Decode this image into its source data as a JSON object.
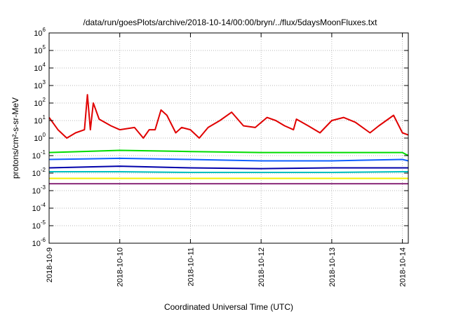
{
  "chart_data": {
    "type": "line",
    "title": "/data/run/goesPlots/archive/2018-10-14/00:00/bryn/../flux/5daysMoonFluxes.txt",
    "xlabel": "Coordinated Universal Time (UTC)",
    "ylabel": "protons/cm²-s-sr-MeV",
    "yscale": "log",
    "ylim": [
      1e-06,
      1000000.0
    ],
    "xlim": [
      "2018-10-09T00:00",
      "2018-10-14T02:00"
    ],
    "grid": true,
    "legend": "none",
    "x_ticks": [
      "2018-10-9",
      "2018-10-10",
      "2018-10-11",
      "2018-10-12",
      "2018-10-13",
      "2018-10-14"
    ],
    "y_ticks": [
      {
        "base": "10",
        "exp": "-6"
      },
      {
        "base": "10",
        "exp": "-5"
      },
      {
        "base": "10",
        "exp": "-4"
      },
      {
        "base": "10",
        "exp": "-3"
      },
      {
        "base": "10",
        "exp": "-2"
      },
      {
        "base": "10",
        "exp": "-1"
      },
      {
        "base": "10",
        "exp": "0"
      },
      {
        "base": "10",
        "exp": "1"
      },
      {
        "base": "10",
        "exp": "2"
      },
      {
        "base": "10",
        "exp": "3"
      },
      {
        "base": "10",
        "exp": "4"
      },
      {
        "base": "10",
        "exp": "5"
      },
      {
        "base": "10",
        "exp": "6"
      }
    ],
    "series": [
      {
        "color": "#e00000",
        "x": [
          "2018-10-09T00:00",
          "2018-10-09T03:00",
          "2018-10-09T06:00",
          "2018-10-09T09:00",
          "2018-10-09T12:00",
          "2018-10-09T13:00",
          "2018-10-09T14:00",
          "2018-10-09T15:00",
          "2018-10-09T17:00",
          "2018-10-09T21:00",
          "2018-10-10T00:00",
          "2018-10-10T05:00",
          "2018-10-10T08:00",
          "2018-10-10T10:00",
          "2018-10-10T12:00",
          "2018-10-10T14:00",
          "2018-10-10T16:00",
          "2018-10-10T19:00",
          "2018-10-10T21:00",
          "2018-10-11T00:00",
          "2018-10-11T03:00",
          "2018-10-11T06:00",
          "2018-10-11T10:00",
          "2018-10-11T14:00",
          "2018-10-11T18:00",
          "2018-10-11T22:00",
          "2018-10-12T02:00",
          "2018-10-12T05:00",
          "2018-10-12T08:00",
          "2018-10-12T11:00",
          "2018-10-12T12:00",
          "2018-10-12T16:00",
          "2018-10-12T20:00",
          "2018-10-13T00:00",
          "2018-10-13T04:00",
          "2018-10-13T08:00",
          "2018-10-13T13:00",
          "2018-10-13T16:00",
          "2018-10-13T21:00",
          "2018-10-14T00:00",
          "2018-10-14T02:00"
        ],
        "values": [
          15,
          3,
          1,
          2,
          3,
          300,
          3,
          100,
          12,
          5,
          3,
          4,
          1,
          3,
          3,
          40,
          20,
          2,
          4,
          3,
          1,
          4,
          10,
          30,
          5,
          4,
          15,
          10,
          5,
          3,
          12,
          5,
          2,
          10,
          15,
          8,
          2,
          5,
          20,
          2,
          1.5
        ]
      },
      {
        "color": "#00dd00",
        "x": [
          "2018-10-09T00:00",
          "2018-10-10T00:00",
          "2018-10-11T00:00",
          "2018-10-12T00:00",
          "2018-10-13T00:00",
          "2018-10-14T00:00",
          "2018-10-14T02:00"
        ],
        "values": [
          0.15,
          0.2,
          0.17,
          0.15,
          0.15,
          0.15,
          0.1
        ]
      },
      {
        "color": "#1060ff",
        "x": [
          "2018-10-09T00:00",
          "2018-10-10T00:00",
          "2018-10-11T00:00",
          "2018-10-12T00:00",
          "2018-10-13T00:00",
          "2018-10-14T00:00",
          "2018-10-14T02:00"
        ],
        "values": [
          0.06,
          0.07,
          0.06,
          0.05,
          0.05,
          0.06,
          0.05
        ]
      },
      {
        "color": "#0000aa",
        "x": [
          "2018-10-09T00:00",
          "2018-10-10T00:00",
          "2018-10-11T00:00",
          "2018-10-12T00:00",
          "2018-10-13T00:00",
          "2018-10-14T00:00",
          "2018-10-14T02:00"
        ],
        "values": [
          0.02,
          0.025,
          0.02,
          0.018,
          0.02,
          0.02,
          0.02
        ]
      },
      {
        "color": "#00c0c0",
        "x": [
          "2018-10-09T00:00",
          "2018-10-10T00:00",
          "2018-10-11T00:00",
          "2018-10-12T00:00",
          "2018-10-13T00:00",
          "2018-10-14T00:00",
          "2018-10-14T02:00"
        ],
        "values": [
          0.012,
          0.012,
          0.011,
          0.011,
          0.011,
          0.012,
          0.012
        ]
      },
      {
        "color": "#f0f000",
        "x": [
          "2018-10-09T00:00",
          "2018-10-14T02:00"
        ],
        "values": [
          0.005,
          0.005
        ]
      },
      {
        "color": "#8a2a7a",
        "x": [
          "2018-10-09T00:00",
          "2018-10-14T02:00"
        ],
        "values": [
          0.0025,
          0.0025
        ]
      }
    ]
  }
}
